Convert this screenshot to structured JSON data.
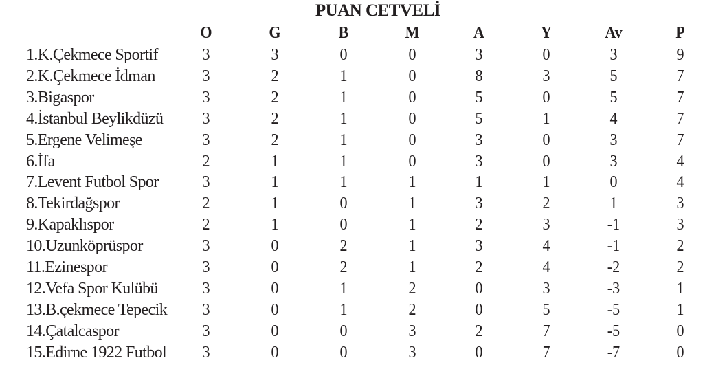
{
  "title": "PUAN CETVELİ",
  "columns": [
    "O",
    "G",
    "B",
    "M",
    "A",
    "Y",
    "Av",
    "P"
  ],
  "rows": [
    {
      "team": "1.K.Çekmece Sportif",
      "v": [
        "3",
        "3",
        "0",
        "0",
        "3",
        "0",
        "3",
        "9"
      ]
    },
    {
      "team": "2.K.Çekmece İdman",
      "v": [
        "3",
        "2",
        "1",
        "0",
        "8",
        "3",
        "5",
        "7"
      ]
    },
    {
      "team": "3.Bigaspor",
      "v": [
        "3",
        "2",
        "1",
        "0",
        "5",
        "0",
        "5",
        "7"
      ]
    },
    {
      "team": "4.İstanbul Beylikdüzü",
      "v": [
        "3",
        "2",
        "1",
        "0",
        "5",
        "1",
        "4",
        "7"
      ]
    },
    {
      "team": "5.Ergene Velimeşe",
      "v": [
        "3",
        "2",
        "1",
        "0",
        "3",
        "0",
        "3",
        "7"
      ]
    },
    {
      "team": "6.İfa",
      "v": [
        "2",
        "1",
        "1",
        "0",
        "3",
        "0",
        "3",
        "4"
      ]
    },
    {
      "team": "7.Levent Futbol Spor",
      "v": [
        "3",
        "1",
        "1",
        "1",
        "1",
        "1",
        "0",
        "4"
      ]
    },
    {
      "team": "8.Tekirdağspor",
      "v": [
        "2",
        "1",
        "0",
        "1",
        "3",
        "2",
        "1",
        "3"
      ]
    },
    {
      "team": "9.Kapaklıspor",
      "v": [
        "2",
        "1",
        "0",
        "1",
        "2",
        "3",
        "-1",
        "3"
      ]
    },
    {
      "team": "10.Uzunköprüspor",
      "v": [
        "3",
        "0",
        "2",
        "1",
        "3",
        "4",
        "-1",
        "2"
      ]
    },
    {
      "team": "11.Ezinespor",
      "v": [
        "3",
        "0",
        "2",
        "1",
        "2",
        "4",
        "-2",
        "2"
      ]
    },
    {
      "team": "12.Vefa Spor Kulübü",
      "v": [
        "3",
        "0",
        "1",
        "2",
        "0",
        "3",
        "-3",
        "1"
      ]
    },
    {
      "team": "13.B.çekmece Tepecik",
      "v": [
        "3",
        "0",
        "1",
        "2",
        "0",
        "5",
        "-5",
        "1"
      ]
    },
    {
      "team": "14.Çatalcaspor",
      "v": [
        "3",
        "0",
        "0",
        "3",
        "2",
        "7",
        "-5",
        "0"
      ]
    },
    {
      "team": "15.Edirne 1922 Futbol",
      "v": [
        "3",
        "0",
        "0",
        "3",
        "0",
        "7",
        "-7",
        "0"
      ]
    }
  ]
}
